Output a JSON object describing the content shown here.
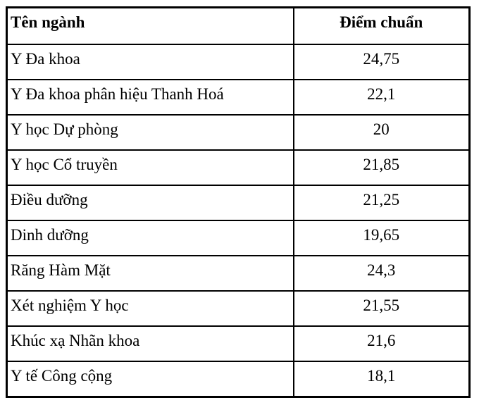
{
  "table": {
    "columns": [
      {
        "label": "Tên ngành"
      },
      {
        "label": "Điểm chuẩn"
      }
    ],
    "rows": [
      {
        "nganh": "Y Đa khoa",
        "diem": "24,75"
      },
      {
        "nganh": "Y Đa khoa phân hiệu Thanh Hoá",
        "diem": "22,1"
      },
      {
        "nganh": "Y học Dự phòng",
        "diem": "20"
      },
      {
        "nganh": "Y học Cổ truyền",
        "diem": "21,85"
      },
      {
        "nganh": "Điều dưỡng",
        "diem": "21,25"
      },
      {
        "nganh": "Dinh dưỡng",
        "diem": "19,65"
      },
      {
        "nganh": "Răng Hàm Mặt",
        "diem": "24,3"
      },
      {
        "nganh": "Xét nghiệm Y học",
        "diem": "21,55"
      },
      {
        "nganh": "Khúc xạ Nhãn khoa",
        "diem": "21,6"
      },
      {
        "nganh": "Y tế Công cộng",
        "diem": "18,1"
      }
    ],
    "colors": {
      "border": "#000000",
      "text": "#000000",
      "background": "#ffffff"
    }
  }
}
